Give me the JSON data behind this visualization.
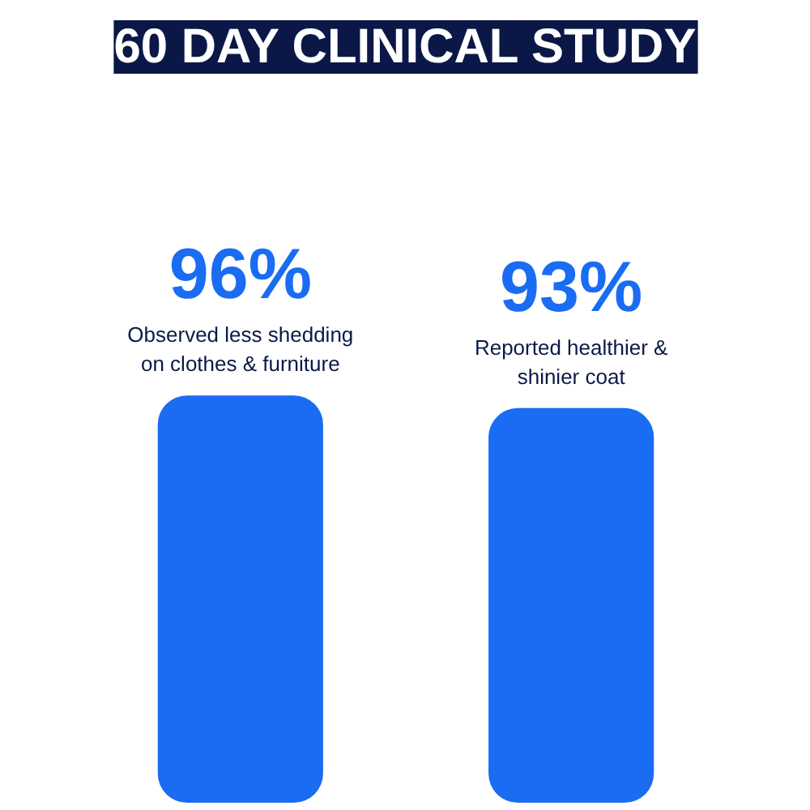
{
  "chart_data": {
    "type": "bar",
    "title": "60 DAY CLINICAL STUDY",
    "categories": [
      "Observed less shedding on clothes & furniture",
      "Reported healthier & shinier coat"
    ],
    "values": [
      96,
      93
    ],
    "value_labels": [
      "96%",
      "93%"
    ],
    "color": "#1a6cf2",
    "grid": false
  }
}
